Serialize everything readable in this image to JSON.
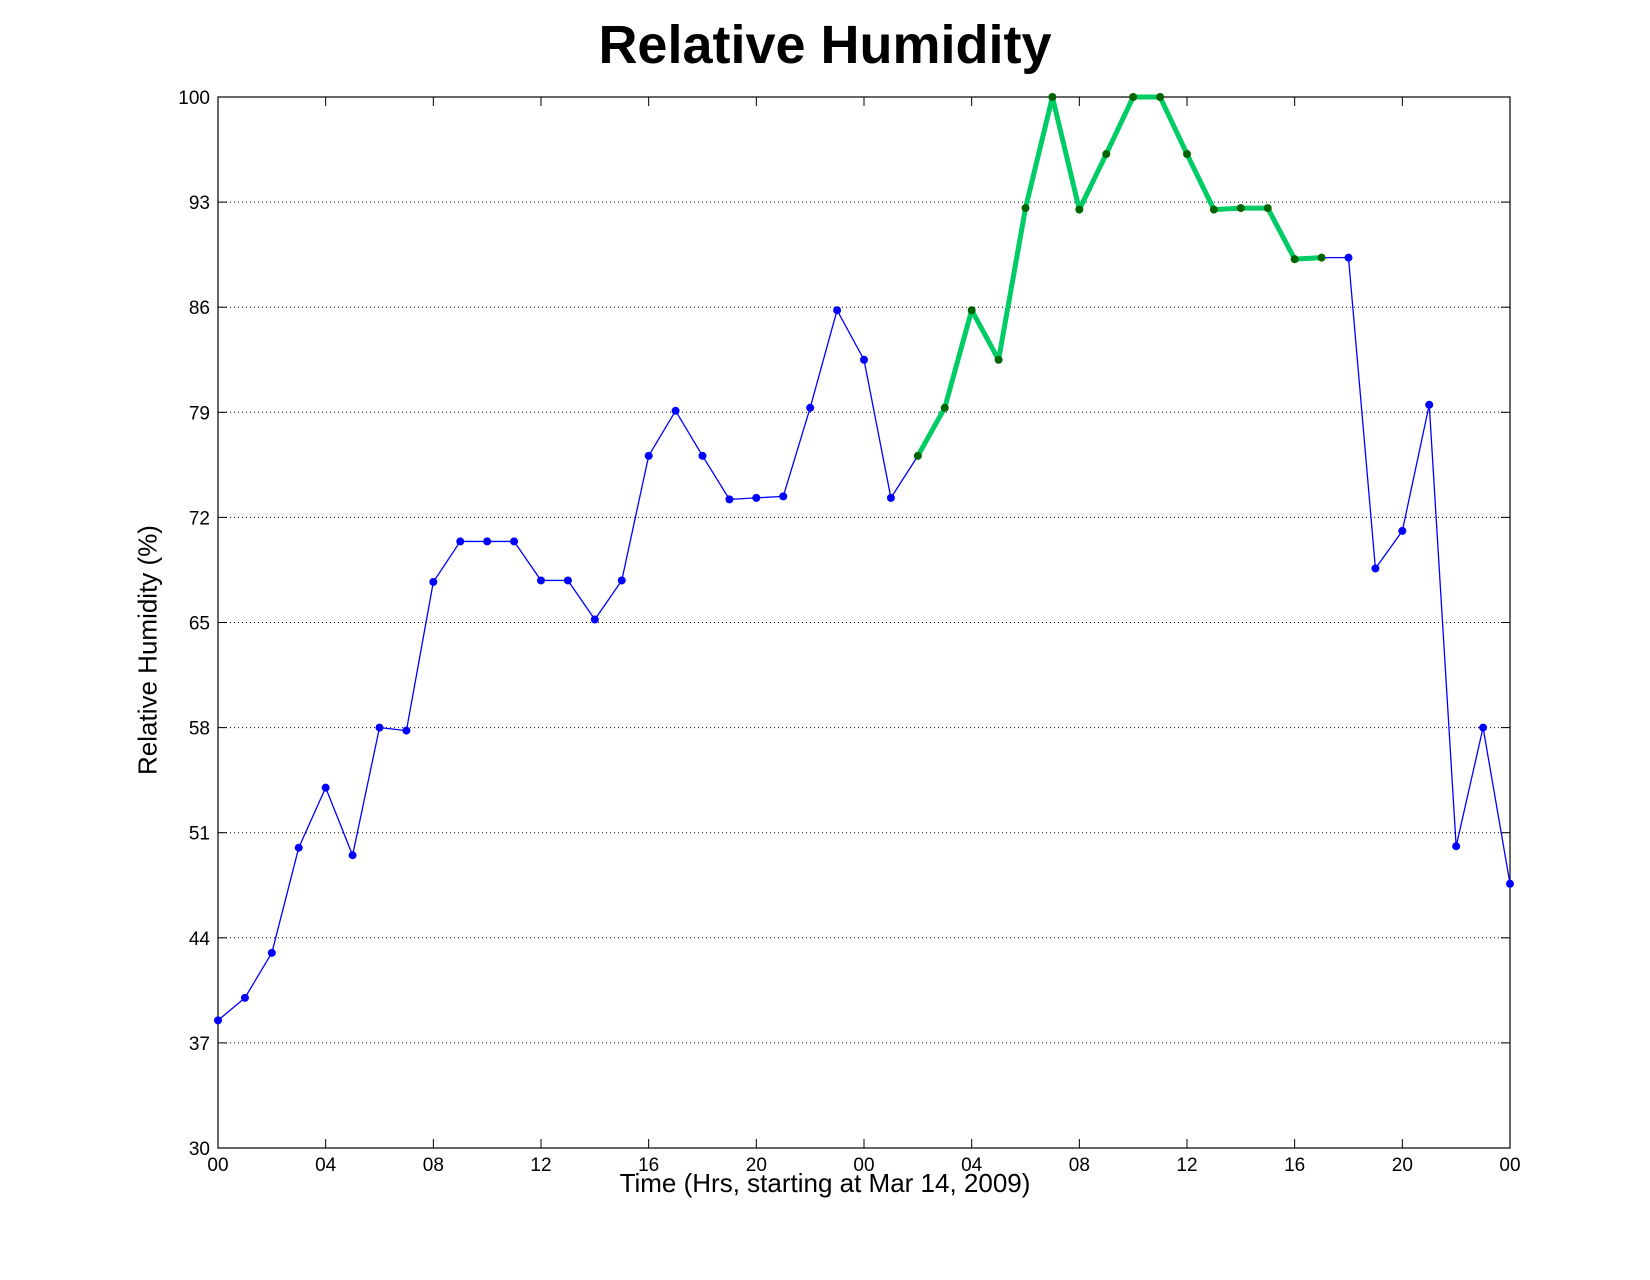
{
  "chart_data": {
    "type": "line",
    "title": "Relative Humidity",
    "xlabel": "Time (Hrs, starting at Mar 14, 2009)",
    "ylabel": "Relative Humidity (%)",
    "xlim": [
      0,
      48
    ],
    "ylim": [
      30,
      100
    ],
    "x_tick_positions": [
      0,
      4,
      8,
      12,
      16,
      20,
      24,
      28,
      32,
      36,
      40,
      44,
      48
    ],
    "x_tick_labels": [
      "00",
      "04",
      "08",
      "12",
      "16",
      "20",
      "00",
      "04",
      "08",
      "12",
      "16",
      "20",
      "00"
    ],
    "y_ticks": [
      30,
      37,
      44,
      51,
      58,
      65,
      72,
      79,
      86,
      93,
      100
    ],
    "grid": true,
    "x": [
      0,
      1,
      2,
      3,
      4,
      5,
      6,
      7,
      8,
      9,
      10,
      11,
      12,
      13,
      14,
      15,
      16,
      17,
      18,
      19,
      20,
      21,
      22,
      23,
      24,
      25,
      26,
      27,
      28,
      29,
      30,
      31,
      32,
      33,
      34,
      35,
      36,
      37,
      38,
      39,
      40,
      41,
      42,
      43,
      44,
      45,
      46,
      47,
      48
    ],
    "series": [
      {
        "color": "#0000ff",
        "highlight_color": "#00cc66",
        "highlight_marker_color": "#006400",
        "highlight_range": [
          26,
          41
        ],
        "values": [
          38.5,
          40,
          43,
          50,
          54,
          49.5,
          58,
          57.8,
          67.7,
          70.4,
          70.4,
          70.4,
          67.8,
          67.8,
          65.2,
          67.8,
          76.1,
          79.1,
          76.1,
          73.2,
          73.3,
          73.4,
          79.3,
          85.8,
          82.5,
          73.3,
          76.1,
          79.3,
          85.8,
          82.5,
          92.6,
          100,
          92.5,
          96.2,
          100,
          100,
          96.2,
          92.5,
          92.6,
          92.6,
          89.2,
          89.3,
          89.3,
          68.6,
          71.1,
          79.5,
          50.1,
          58,
          47.6
        ]
      }
    ]
  }
}
